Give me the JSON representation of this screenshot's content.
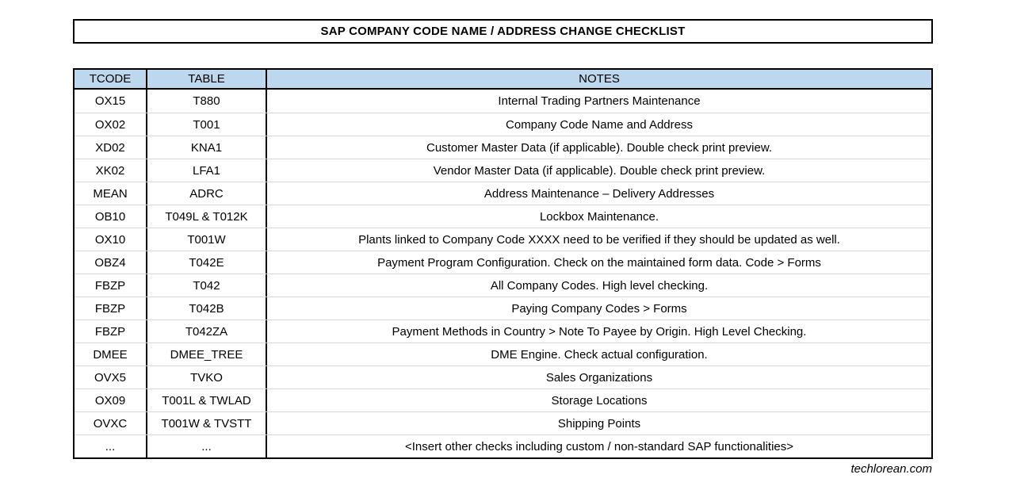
{
  "title": "SAP COMPANY CODE NAME / ADDRESS CHANGE CHECKLIST",
  "colors": {
    "header_bg": "#BDD7EE",
    "border": "#000000",
    "row_divider": "#D6D6D6",
    "text": "#000000"
  },
  "table": {
    "header": {
      "tcode": "TCODE",
      "table": "TABLE",
      "notes": "NOTES"
    },
    "rows": [
      {
        "tcode": "OX15",
        "table": "T880",
        "notes": "Internal Trading Partners Maintenance"
      },
      {
        "tcode": "OX02",
        "table": "T001",
        "notes": "Company Code Name and Address"
      },
      {
        "tcode": "XD02",
        "table": "KNA1",
        "notes": "Customer Master Data (if applicable). Double check print preview."
      },
      {
        "tcode": "XK02",
        "table": "LFA1",
        "notes": "Vendor Master Data (if applicable). Double check print preview."
      },
      {
        "tcode": "MEAN",
        "table": "ADRC",
        "notes": "Address Maintenance – Delivery Addresses"
      },
      {
        "tcode": "OB10",
        "table": "T049L & T012K",
        "notes": "Lockbox Maintenance."
      },
      {
        "tcode": "OX10",
        "table": "T001W",
        "notes": "Plants linked to Company Code XXXX need to be verified if they should be updated as well."
      },
      {
        "tcode": "OBZ4",
        "table": "T042E",
        "notes": "Payment Program Configuration. Check on the maintained form data. Code > Forms"
      },
      {
        "tcode": "FBZP",
        "table": "T042",
        "notes": "All Company Codes. High level checking."
      },
      {
        "tcode": "FBZP",
        "table": "T042B",
        "notes": "Paying Company Codes > Forms"
      },
      {
        "tcode": "FBZP",
        "table": "T042ZA",
        "notes": "Payment Methods in Country > Note To Payee by Origin. High Level Checking."
      },
      {
        "tcode": "DMEE",
        "table": "DMEE_TREE",
        "notes": "DME Engine. Check actual configuration."
      },
      {
        "tcode": "OVX5",
        "table": "TVKO",
        "notes": "Sales Organizations"
      },
      {
        "tcode": "OX09",
        "table": "T001L & TWLAD",
        "notes": "Storage Locations"
      },
      {
        "tcode": "OVXC",
        "table": "T001W & TVSTT",
        "notes": "Shipping Points"
      },
      {
        "tcode": "...",
        "table": "...",
        "notes": "<Insert other checks including custom / non-standard SAP functionalities>"
      }
    ]
  },
  "footer": {
    "credit": "techlorean.com"
  }
}
